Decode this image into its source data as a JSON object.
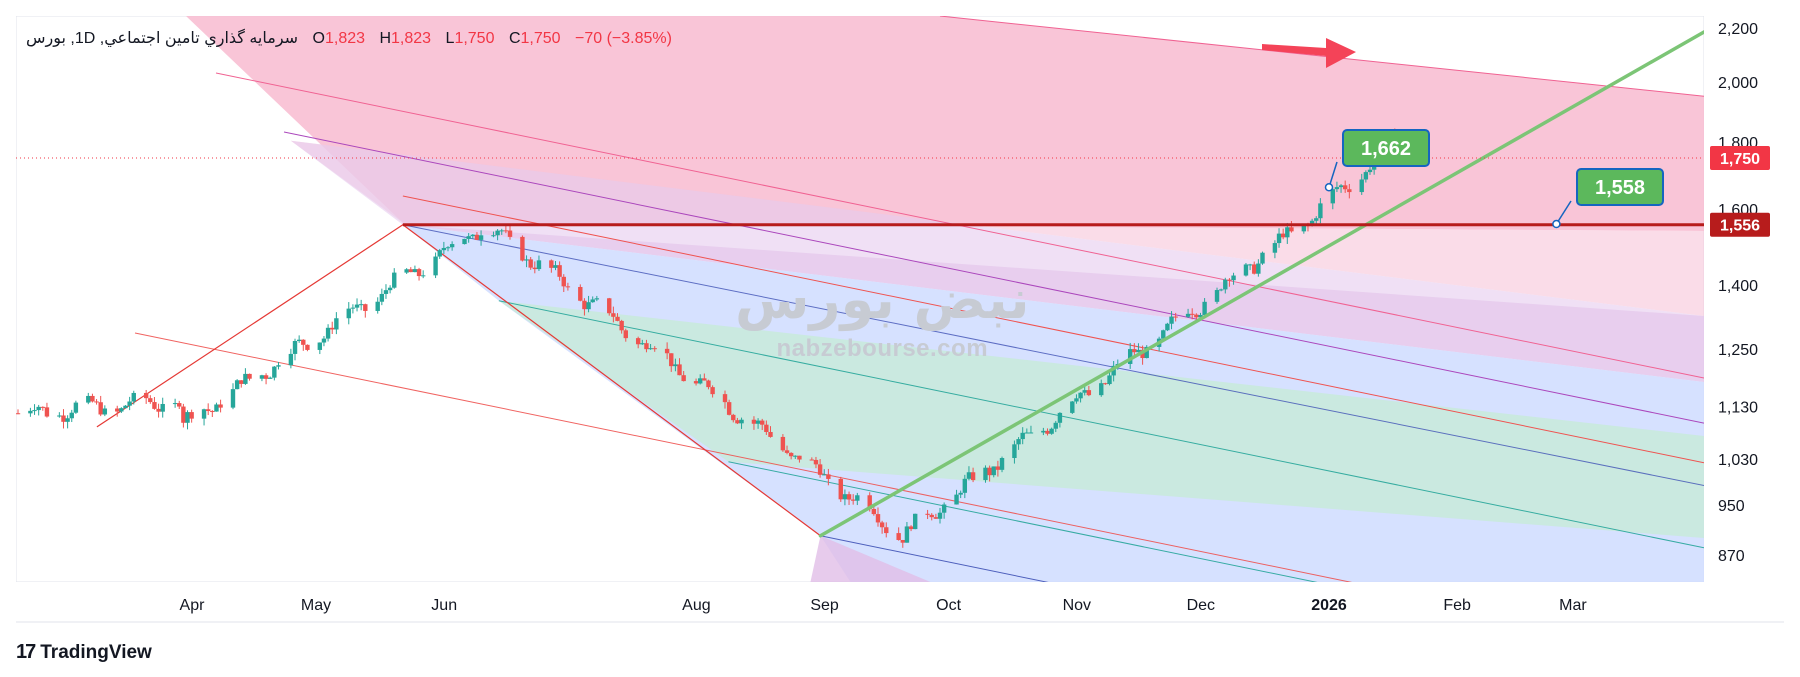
{
  "header": {
    "symbol": "سرمايه گذاري تامين اجتماعي, 1D, بورس",
    "open_label": "O",
    "open": "1,823",
    "high_label": "H",
    "high": "1,823",
    "low_label": "L",
    "low": "1,750",
    "close_label": "C",
    "close": "1,750",
    "change": "−70 (−3.85%)"
  },
  "watermark": {
    "fa": "نبض بورس",
    "en": "nabzebourse.com"
  },
  "brand": {
    "glyph": "17",
    "name": "TradingView"
  },
  "colors": {
    "up": "#26a69a",
    "down": "#ef5350",
    "green_line": "#7cc576",
    "level_line": "#b71c1c",
    "price_tag": "#f23645",
    "level_tag": "#b71c1c",
    "callout": "#5cb85c",
    "callout_border": "#1565c0"
  },
  "chart_data": {
    "type": "candlestick",
    "y_scale": "log",
    "y_ticks": [
      870,
      950,
      1030,
      1130,
      1250,
      1400,
      1600,
      1800,
      2000,
      2200
    ],
    "y_tick_labels": [
      "870",
      "950",
      "1,030",
      "1,130",
      "1,250",
      "1,400",
      "1,600",
      "1,800",
      "2,000",
      "2,200"
    ],
    "x_labels": [
      {
        "date": "2025-04-01",
        "label": "Apr"
      },
      {
        "date": "2025-05-01",
        "label": "May"
      },
      {
        "date": "2025-06-01",
        "label": "Jun"
      },
      {
        "date": "2025-08-01",
        "label": "Aug"
      },
      {
        "date": "2025-09-01",
        "label": "Sep"
      },
      {
        "date": "2025-10-01",
        "label": "Oct"
      },
      {
        "date": "2025-11-01",
        "label": "Nov"
      },
      {
        "date": "2025-12-01",
        "label": "Dec"
      },
      {
        "date": "2026-01-01",
        "label": "2026",
        "bold": true
      },
      {
        "date": "2026-02-01",
        "label": "Feb"
      },
      {
        "date": "2026-03-01",
        "label": "Mar"
      }
    ],
    "price_tags": [
      {
        "value": 1750,
        "label": "1,750"
      },
      {
        "value": 1556,
        "label": "1,556"
      }
    ],
    "horizontal_level": 1556,
    "callouts": [
      {
        "label": "1,662",
        "date": "2026-01-01",
        "value": 1662
      },
      {
        "label": "1,558",
        "date": "2026-02-25",
        "value": 1558
      }
    ],
    "pivots": [
      {
        "date": "2025-03-09",
        "value": 1090
      },
      {
        "date": "2025-05-22",
        "value": 1556
      },
      {
        "date": "2025-08-31",
        "value": 900
      },
      {
        "date": "2025-12-06",
        "value": 1560
      },
      {
        "date": "2025-12-28",
        "value": 1800
      }
    ],
    "candles_from": "2025-01-29",
    "candles_to": "2025-12-28"
  }
}
